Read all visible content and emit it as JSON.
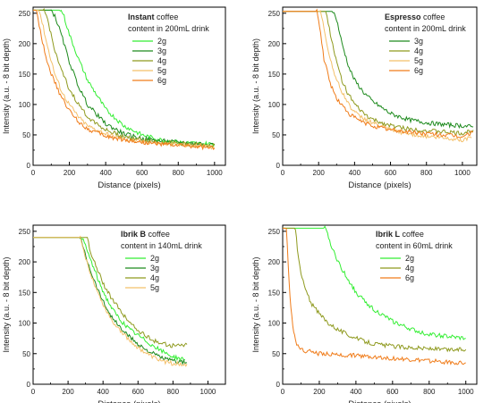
{
  "colors": {
    "2g": "#33ee33",
    "3g": "#1d8a1d",
    "4g": "#8f9a1f",
    "5g": "#f4c06a",
    "6g": "#f07c1a"
  },
  "chart_data": [
    {
      "type": "line",
      "title_bold": "Instant",
      "title_rest": " coffee",
      "subtitle": "content in 200mL drink",
      "xlabel": "Distance (pixels)",
      "ylabel": "Intensity (a.u. - 8 bit depth)",
      "xlim": [
        0,
        1060
      ],
      "ylim": [
        0,
        260
      ],
      "xticks": [
        "0",
        "200",
        "400",
        "600",
        "800",
        "1000"
      ],
      "xtick_values": [
        0,
        200,
        400,
        600,
        800,
        1000
      ],
      "yticks": [
        "0",
        "50",
        "100",
        "150",
        "200",
        "250"
      ],
      "ytick_values": [
        0,
        50,
        100,
        150,
        200,
        250
      ],
      "legend_position": "top-right",
      "series": [
        {
          "name": "2g",
          "key": "2g",
          "x": [
            0,
            150,
            165,
            200,
            250,
            300,
            400,
            500,
            600,
            700,
            800,
            900,
            1000
          ],
          "y": [
            255,
            255,
            250,
            215,
            175,
            140,
            92,
            65,
            50,
            42,
            38,
            36,
            35
          ]
        },
        {
          "name": "3g",
          "key": "3g",
          "x": [
            0,
            100,
            120,
            150,
            200,
            250,
            300,
            400,
            500,
            600,
            700,
            800,
            900,
            1000
          ],
          "y": [
            255,
            255,
            245,
            220,
            170,
            130,
            100,
            68,
            52,
            44,
            40,
            38,
            36,
            35
          ]
        },
        {
          "name": "4g",
          "key": "4g",
          "x": [
            0,
            60,
            80,
            110,
            150,
            200,
            250,
            300,
            400,
            500,
            600,
            700,
            800,
            900,
            1000
          ],
          "y": [
            255,
            255,
            240,
            200,
            160,
            125,
            100,
            80,
            58,
            47,
            42,
            38,
            36,
            34,
            33
          ]
        },
        {
          "name": "5g",
          "key": "5g",
          "x": [
            0,
            35,
            50,
            80,
            120,
            160,
            200,
            250,
            300,
            400,
            500,
            600,
            700,
            800,
            900,
            1000
          ],
          "y": [
            255,
            255,
            235,
            195,
            150,
            120,
            100,
            80,
            65,
            52,
            43,
            39,
            36,
            34,
            32,
            30
          ]
        },
        {
          "name": "6g",
          "key": "6g",
          "x": [
            0,
            20,
            40,
            70,
            100,
            150,
            200,
            250,
            300,
            400,
            500,
            600,
            700,
            800,
            900,
            1000
          ],
          "y": [
            255,
            255,
            220,
            180,
            150,
            115,
            90,
            72,
            60,
            48,
            42,
            38,
            35,
            33,
            31,
            28
          ]
        }
      ]
    },
    {
      "type": "line",
      "title_bold": "Espresso",
      "title_rest": " coffee",
      "subtitle": "content in 200mL drink",
      "xlabel": "Distance (pixels)",
      "ylabel": "Intensity (a.u. - 8 bit depth)",
      "xlim": [
        0,
        1080
      ],
      "ylim": [
        0,
        260
      ],
      "xticks": [
        "0",
        "200",
        "400",
        "600",
        "800",
        "1000"
      ],
      "xtick_values": [
        0,
        200,
        400,
        600,
        800,
        1000
      ],
      "yticks": [
        "0",
        "50",
        "100",
        "150",
        "200",
        "250"
      ],
      "ytick_values": [
        0,
        50,
        100,
        150,
        200,
        250
      ],
      "legend_position": "top-right",
      "series": [
        {
          "name": "3g",
          "key": "3g",
          "x": [
            0,
            280,
            300,
            330,
            370,
            400,
            450,
            500,
            600,
            700,
            800,
            900,
            1000,
            1060
          ],
          "y": [
            253,
            253,
            240,
            200,
            160,
            140,
            120,
            105,
            85,
            75,
            70,
            67,
            65,
            63
          ]
        },
        {
          "name": "4g",
          "key": "4g",
          "x": [
            0,
            240,
            260,
            290,
            330,
            360,
            400,
            450,
            500,
            600,
            700,
            800,
            900,
            1000,
            1060
          ],
          "y": [
            253,
            253,
            225,
            180,
            140,
            120,
            100,
            85,
            75,
            65,
            60,
            57,
            55,
            52,
            58
          ]
        },
        {
          "name": "5g",
          "key": "5g",
          "x": [
            0,
            210,
            230,
            260,
            300,
            340,
            380,
            420,
            500,
            600,
            700,
            800,
            900,
            1000,
            1050
          ],
          "y": [
            253,
            253,
            225,
            180,
            140,
            115,
            95,
            82,
            70,
            58,
            52,
            48,
            45,
            42,
            45
          ]
        },
        {
          "name": "6g",
          "key": "6g",
          "x": [
            0,
            190,
            205,
            230,
            270,
            300,
            340,
            380,
            450,
            500,
            600,
            700,
            800,
            900,
            1000,
            1060
          ],
          "y": [
            253,
            253,
            230,
            175,
            130,
            110,
            95,
            82,
            70,
            65,
            58,
            55,
            52,
            50,
            47,
            55
          ]
        }
      ]
    },
    {
      "type": "line",
      "title_bold": "Ibrik B",
      "title_rest": " coffee",
      "subtitle": "content in 140mL drink",
      "xlabel": "Distance (pixels)",
      "ylabel": "Intensity (a.u. - 8 bit depth)",
      "xlim": [
        0,
        1100
      ],
      "ylim": [
        0,
        260
      ],
      "xticks": [
        "0",
        "200",
        "400",
        "600",
        "800",
        "1000"
      ],
      "xtick_values": [
        0,
        200,
        400,
        600,
        800,
        1000
      ],
      "yticks": [
        "0",
        "50",
        "100",
        "150",
        "200",
        "250"
      ],
      "ytick_values": [
        0,
        50,
        100,
        150,
        200,
        250
      ],
      "legend_position": "top-right",
      "series": [
        {
          "name": "2g",
          "key": "2g",
          "x": [
            0,
            280,
            300,
            340,
            380,
            420,
            460,
            500,
            550,
            600,
            650,
            700,
            750,
            800,
            870
          ],
          "y": [
            240,
            240,
            225,
            195,
            165,
            140,
            120,
            105,
            90,
            80,
            70,
            60,
            52,
            45,
            40
          ]
        },
        {
          "name": "3g",
          "key": "3g",
          "x": [
            0,
            270,
            290,
            330,
            370,
            410,
            450,
            500,
            550,
            600,
            650,
            700,
            750,
            800,
            880
          ],
          "y": [
            240,
            240,
            220,
            185,
            155,
            130,
            110,
            92,
            78,
            66,
            56,
            48,
            42,
            38,
            35
          ]
        },
        {
          "name": "4g",
          "key": "4g",
          "x": [
            0,
            310,
            330,
            370,
            410,
            450,
            500,
            550,
            600,
            650,
            700,
            750,
            800,
            880
          ],
          "y": [
            240,
            240,
            215,
            185,
            160,
            140,
            120,
            102,
            88,
            78,
            70,
            66,
            63,
            65
          ]
        },
        {
          "name": "5g",
          "key": "5g",
          "x": [
            0,
            270,
            290,
            330,
            370,
            410,
            450,
            500,
            550,
            600,
            650,
            700,
            750,
            800,
            880
          ],
          "y": [
            240,
            240,
            215,
            180,
            150,
            125,
            105,
            88,
            72,
            60,
            50,
            42,
            37,
            34,
            33
          ]
        }
      ]
    },
    {
      "type": "line",
      "title_bold": "Ibrik L",
      "title_rest": " coffee",
      "subtitle": "content in 60mL drink",
      "xlabel": "Distance (pixels)",
      "ylabel": "Intensity (a.u. - 8 bit depth)",
      "xlim": [
        0,
        1060
      ],
      "ylim": [
        0,
        260
      ],
      "xticks": [
        "0",
        "200",
        "400",
        "600",
        "800",
        "1000"
      ],
      "xtick_values": [
        0,
        200,
        400,
        600,
        800,
        1000
      ],
      "yticks": [
        "0",
        "50",
        "100",
        "150",
        "200",
        "250"
      ],
      "ytick_values": [
        0,
        50,
        100,
        150,
        200,
        250
      ],
      "legend_position": "top-right",
      "series": [
        {
          "name": "2g",
          "key": "2g",
          "x": [
            0,
            230,
            245,
            280,
            320,
            360,
            400,
            450,
            500,
            550,
            600,
            650,
            700,
            750,
            800,
            850,
            900,
            950,
            1000
          ],
          "y": [
            255,
            255,
            245,
            215,
            190,
            170,
            150,
            135,
            122,
            112,
            103,
            96,
            90,
            85,
            82,
            80,
            78,
            76,
            75
          ]
        },
        {
          "name": "4g",
          "key": "4g",
          "x": [
            0,
            70,
            80,
            100,
            130,
            160,
            200,
            250,
            300,
            350,
            400,
            450,
            500,
            600,
            700,
            800,
            900,
            1000
          ],
          "y": [
            255,
            255,
            220,
            180,
            150,
            130,
            115,
            100,
            90,
            82,
            75,
            70,
            66,
            62,
            60,
            58,
            56,
            57
          ]
        },
        {
          "name": "6g",
          "key": "6g",
          "x": [
            0,
            20,
            30,
            40,
            55,
            70,
            90,
            120,
            160,
            200,
            300,
            400,
            500,
            600,
            700,
            800,
            900,
            1000
          ],
          "y": [
            255,
            255,
            200,
            140,
            95,
            70,
            60,
            55,
            53,
            50,
            48,
            47,
            45,
            42,
            40,
            38,
            36,
            35
          ]
        }
      ]
    }
  ]
}
